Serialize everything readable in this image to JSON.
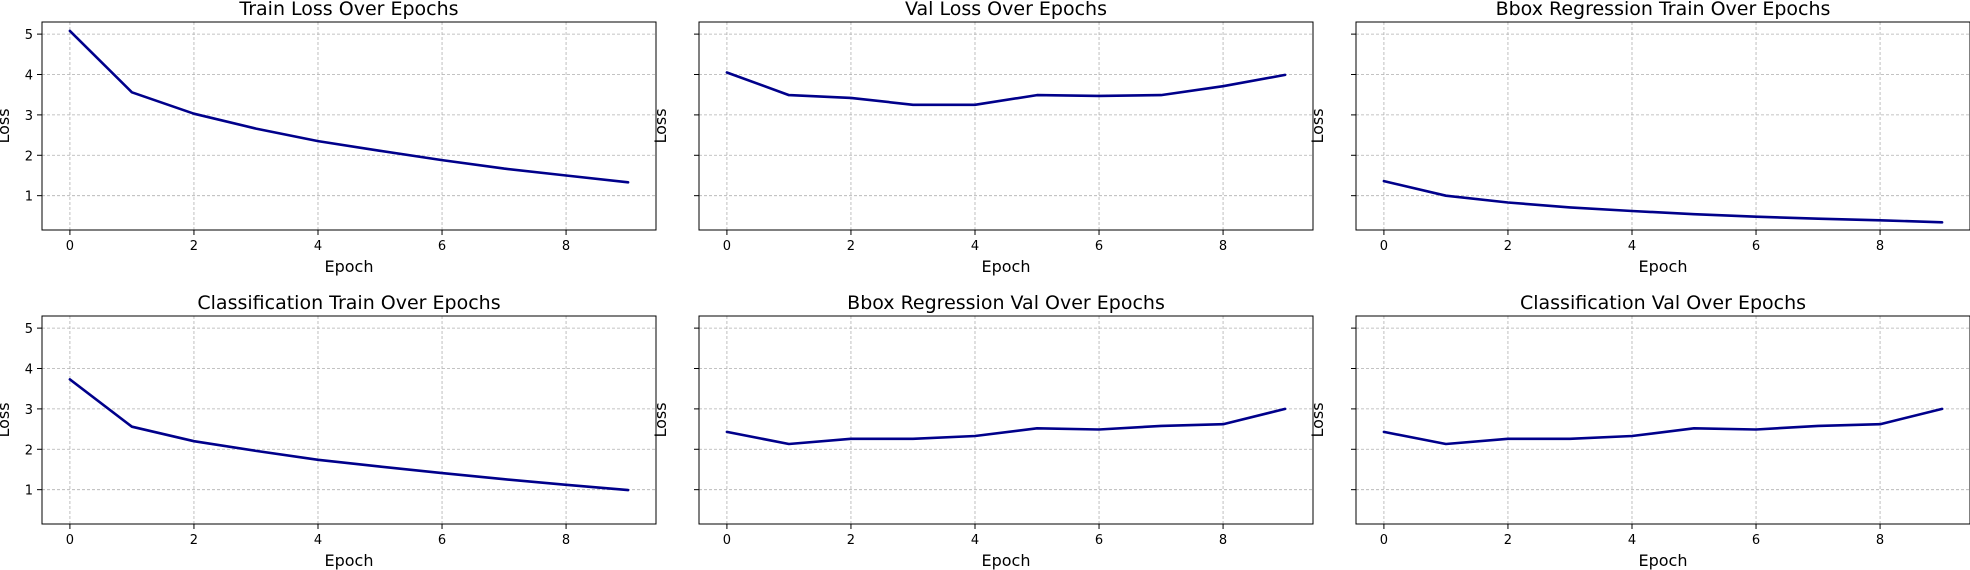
{
  "chart_data": [
    {
      "type": "line",
      "title": "Train Loss Over Epochs",
      "xlabel": "Epoch",
      "ylabel": "Loss",
      "x": [
        0,
        1,
        2,
        3,
        4,
        5,
        6,
        7,
        8,
        9
      ],
      "series": [
        {
          "values": [
            5.08,
            3.56,
            3.03,
            2.66,
            2.35,
            2.11,
            1.88,
            1.67,
            1.5,
            1.33
          ]
        }
      ],
      "xticks": [
        0,
        2,
        4,
        6,
        8
      ],
      "yticks": [
        1,
        2,
        3,
        4,
        5
      ],
      "ytick_labels_shown": true,
      "xlim": [
        -0.45,
        9.45
      ],
      "ylim": [
        0.15,
        5.3
      ],
      "grid": true,
      "color": "#00008b"
    },
    {
      "type": "line",
      "title": "Val Loss Over Epochs",
      "xlabel": "Epoch",
      "ylabel": "Loss",
      "x": [
        0,
        1,
        2,
        3,
        4,
        5,
        6,
        7,
        8,
        9
      ],
      "series": [
        {
          "values": [
            4.05,
            3.49,
            3.42,
            3.25,
            3.25,
            3.49,
            3.47,
            3.49,
            3.71,
            3.99
          ]
        }
      ],
      "xticks": [
        0,
        2,
        4,
        6,
        8
      ],
      "yticks": [
        1,
        2,
        3,
        4,
        5
      ],
      "ytick_labels_shown": false,
      "xlim": [
        -0.45,
        9.45
      ],
      "ylim": [
        0.15,
        5.3
      ],
      "grid": true,
      "color": "#00008b"
    },
    {
      "type": "line",
      "title": "Bbox Regression Train Over Epochs",
      "xlabel": "Epoch",
      "ylabel": "Loss",
      "x": [
        0,
        1,
        2,
        3,
        4,
        5,
        6,
        7,
        8,
        9
      ],
      "series": [
        {
          "values": [
            1.36,
            1.0,
            0.83,
            0.71,
            0.62,
            0.54,
            0.48,
            0.43,
            0.39,
            0.34
          ]
        }
      ],
      "xticks": [
        0,
        2,
        4,
        6,
        8
      ],
      "yticks": [
        1,
        2,
        3,
        4,
        5
      ],
      "ytick_labels_shown": false,
      "xlim": [
        -0.45,
        9.45
      ],
      "ylim": [
        0.15,
        5.3
      ],
      "grid": true,
      "color": "#00008b"
    },
    {
      "type": "line",
      "title": "Classification Train Over Epochs",
      "xlabel": "Epoch",
      "ylabel": "Loss",
      "x": [
        0,
        1,
        2,
        3,
        4,
        5,
        6,
        7,
        8,
        9
      ],
      "series": [
        {
          "values": [
            3.73,
            2.56,
            2.2,
            1.96,
            1.74,
            1.57,
            1.41,
            1.26,
            1.12,
            0.99
          ]
        }
      ],
      "xticks": [
        0,
        2,
        4,
        6,
        8
      ],
      "yticks": [
        1,
        2,
        3,
        4,
        5
      ],
      "ytick_labels_shown": true,
      "xlim": [
        -0.45,
        9.45
      ],
      "ylim": [
        0.15,
        5.3
      ],
      "grid": true,
      "color": "#00008b"
    },
    {
      "type": "line",
      "title": "Bbox Regression Val Over Epochs",
      "xlabel": "Epoch",
      "ylabel": "Loss",
      "x": [
        0,
        1,
        2,
        3,
        4,
        5,
        6,
        7,
        8,
        9
      ],
      "series": [
        {
          "values": [
            2.43,
            2.13,
            2.26,
            2.26,
            2.33,
            2.52,
            2.49,
            2.58,
            2.62,
            3.0
          ]
        }
      ],
      "xticks": [
        0,
        2,
        4,
        6,
        8
      ],
      "yticks": [
        1,
        2,
        3,
        4,
        5
      ],
      "ytick_labels_shown": false,
      "xlim": [
        -0.45,
        9.45
      ],
      "ylim": [
        0.15,
        5.3
      ],
      "grid": true,
      "color": "#00008b"
    },
    {
      "type": "line",
      "title": "Classification Val Over Epochs",
      "xlabel": "Epoch",
      "ylabel": "Loss",
      "x": [
        0,
        1,
        2,
        3,
        4,
        5,
        6,
        7,
        8,
        9
      ],
      "series": [
        {
          "values": [
            2.43,
            2.13,
            2.26,
            2.26,
            2.33,
            2.52,
            2.49,
            2.58,
            2.62,
            3.0
          ]
        }
      ],
      "xticks": [
        0,
        2,
        4,
        6,
        8
      ],
      "yticks": [
        1,
        2,
        3,
        4,
        5
      ],
      "ytick_labels_shown": false,
      "xlim": [
        -0.45,
        9.45
      ],
      "ylim": [
        0.15,
        5.3
      ],
      "grid": true,
      "color": "#00008b"
    }
  ]
}
